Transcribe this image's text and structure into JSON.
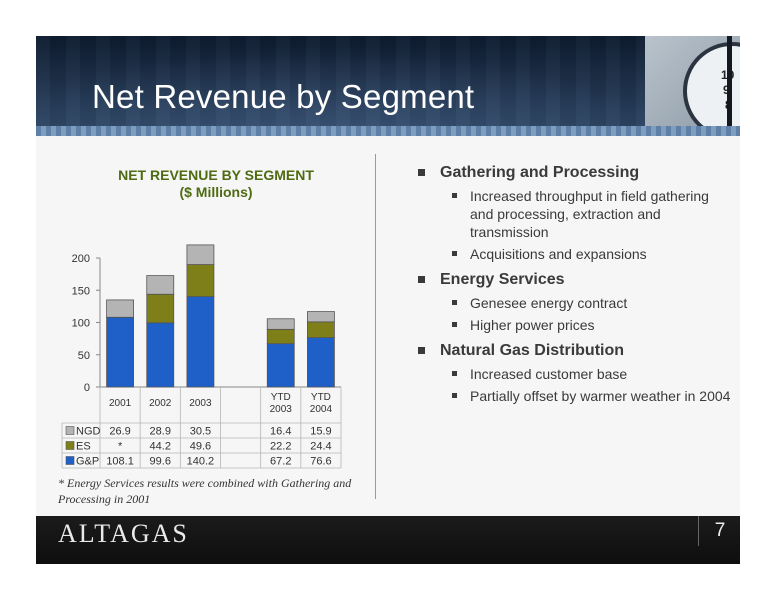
{
  "slide": {
    "title": "Net Revenue by Segment",
    "page_number": "7",
    "logo_text": "ALTAGAS",
    "footnote": "* Energy Services results were combined with Gathering and Processing in 2001"
  },
  "bullets": [
    {
      "heading": "Gathering and Processing",
      "items": [
        "Increased throughput in field gathering and processing, extraction and transmission",
        "Acquisitions and expansions"
      ]
    },
    {
      "heading": "Energy Services",
      "items": [
        "Genesee energy contract",
        "Higher power prices"
      ]
    },
    {
      "heading": "Natural Gas Distribution",
      "items": [
        "Increased customer base",
        "Partially offset by warmer weather in 2004"
      ]
    }
  ],
  "chart_data": {
    "type": "bar",
    "stacked": true,
    "title": "NET REVENUE BY SEGMENT",
    "subtitle": "($ Millions)",
    "categories": [
      [
        "2001"
      ],
      [
        "2002"
      ],
      [
        "2003"
      ],
      [],
      [
        "YTD",
        "2003"
      ],
      [
        "YTD",
        "2004"
      ]
    ],
    "ylim": [
      0,
      200
    ],
    "yticks": [
      0,
      50,
      100,
      150,
      200
    ],
    "grid": false,
    "legend": "data-table",
    "series": [
      {
        "name": "G&P",
        "color": "#1f5fc8",
        "values": [
          108.1,
          99.6,
          140.2,
          null,
          67.2,
          76.6
        ],
        "labels": [
          "108.1",
          "99.6",
          "140.2",
          "",
          "67.2",
          "76.6"
        ]
      },
      {
        "name": "ES",
        "color": "#7f7f1a",
        "values": [
          0,
          44.2,
          49.6,
          null,
          22.2,
          24.4
        ],
        "labels": [
          "*",
          "44.2",
          "49.6",
          "",
          "22.2",
          "24.4"
        ]
      },
      {
        "name": "NGD",
        "color": "#b4b4b4",
        "values": [
          26.9,
          28.9,
          30.5,
          null,
          16.4,
          15.9
        ],
        "labels": [
          "26.9",
          "28.9",
          "30.5",
          "",
          "16.4",
          "15.9"
        ]
      }
    ]
  },
  "thumbnail": {
    "clock_numbers": [
      "10",
      "9",
      "8"
    ]
  }
}
